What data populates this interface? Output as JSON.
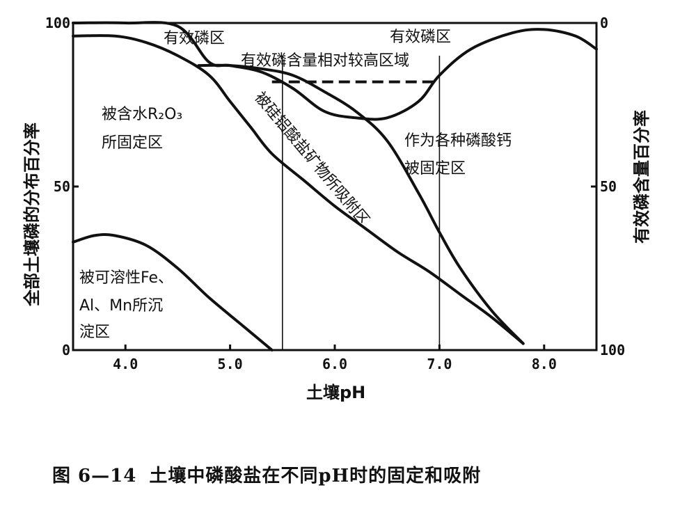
{
  "chart_data": {
    "type": "area",
    "xlabel": "土壤pH",
    "ylabel_left": "全部土壤磷的分布百分率",
    "ylabel_right": "有效磷含量百分率",
    "xlim": [
      3.5,
      8.5
    ],
    "ylim_left": [
      0,
      100
    ],
    "ylim_right": [
      100,
      0
    ],
    "x_ticks": [
      "4.0",
      "5.0",
      "6.0",
      "7.0",
      "8.0"
    ],
    "y_ticks_left": [
      "0",
      "50",
      "100"
    ],
    "y_ticks_right": [
      "0",
      "50",
      "100"
    ],
    "curves": [
      {
        "id": "fe_al_mn_boundary",
        "points": [
          [
            3.5,
            33
          ],
          [
            3.7,
            35
          ],
          [
            3.9,
            35
          ],
          [
            4.2,
            32
          ],
          [
            4.5,
            25
          ],
          [
            4.8,
            16
          ],
          [
            5.1,
            8
          ],
          [
            5.4,
            0
          ]
        ]
      },
      {
        "id": "r2o3_upper_boundary",
        "points": [
          [
            3.5,
            96
          ],
          [
            3.9,
            96
          ],
          [
            4.2,
            94
          ],
          [
            4.5,
            90
          ],
          [
            4.8,
            84
          ],
          [
            5.0,
            76
          ],
          [
            5.2,
            68
          ],
          [
            5.4,
            60
          ],
          [
            5.7,
            52
          ],
          [
            6.0,
            44
          ],
          [
            6.3,
            37
          ],
          [
            6.6,
            30
          ],
          [
            6.9,
            24
          ],
          [
            7.2,
            17
          ],
          [
            7.5,
            10
          ],
          [
            7.8,
            2
          ]
        ]
      },
      {
        "id": "silicate_upper_boundary",
        "points": [
          [
            4.7,
            87
          ],
          [
            5.0,
            87
          ],
          [
            5.3,
            86
          ],
          [
            5.6,
            84
          ],
          [
            5.9,
            79
          ],
          [
            6.2,
            73
          ],
          [
            6.5,
            64
          ],
          [
            6.8,
            48
          ],
          [
            7.0,
            36
          ],
          [
            7.2,
            25
          ],
          [
            7.5,
            12
          ],
          [
            7.8,
            2
          ]
        ]
      },
      {
        "id": "available_p_curve",
        "points": [
          [
            3.5,
            100
          ],
          [
            4.0,
            100
          ],
          [
            4.5,
            99
          ],
          [
            4.8,
            88
          ],
          [
            5.0,
            87
          ],
          [
            5.3,
            85
          ],
          [
            5.6,
            80
          ],
          [
            5.9,
            73
          ],
          [
            6.2,
            71
          ],
          [
            6.5,
            71
          ],
          [
            6.8,
            76
          ],
          [
            7.0,
            84
          ],
          [
            7.3,
            92
          ],
          [
            7.7,
            97
          ],
          [
            8.0,
            98
          ],
          [
            8.3,
            96
          ],
          [
            8.5,
            92
          ]
        ]
      }
    ],
    "dashed_segment": {
      "x": [
        5.4,
        7.0
      ],
      "y": 82
    },
    "guide_lines_x": [
      5.5,
      7.0
    ],
    "annotations": [
      "有效磷区",
      "有效磷区",
      "有效磷含量相对较高区域",
      "被含水R₂O₃",
      "所固定区",
      "被硅铝酸盐矿物所吸附区",
      "作为各种磷酸钙",
      "被固定区",
      "被可溶性Fe、",
      "Al、Mn所沉",
      "淀区"
    ]
  },
  "caption": {
    "label": "图 6—14",
    "text": "土壤中磷酸盐在不同pH时的固定和吸附"
  }
}
